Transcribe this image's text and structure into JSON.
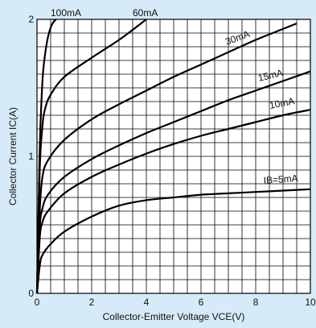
{
  "chart_data": {
    "type": "line",
    "title": "",
    "xlabel": "Collector-Emitter Voltage VCE(V)",
    "ylabel": "Collector Current IC(A)",
    "xlim": [
      0,
      10
    ],
    "ylim": [
      0,
      2
    ],
    "grid": true,
    "x_ticks": [
      "0",
      "2",
      "4",
      "6",
      "8",
      "10"
    ],
    "y_ticks": [
      "0",
      "1",
      "2"
    ],
    "series": [
      {
        "name": "100mA",
        "points": [
          [
            0,
            0
          ],
          [
            0.1,
            1.05
          ],
          [
            0.2,
            1.55
          ],
          [
            0.3,
            1.75
          ],
          [
            0.4,
            1.87
          ],
          [
            0.5,
            1.94
          ],
          [
            0.6,
            1.98
          ],
          [
            0.7,
            2.0
          ]
        ]
      },
      {
        "name": "60mA",
        "points": [
          [
            0,
            0
          ],
          [
            0.1,
            0.9
          ],
          [
            0.2,
            1.22
          ],
          [
            0.3,
            1.35
          ],
          [
            0.5,
            1.45
          ],
          [
            1,
            1.58
          ],
          [
            2,
            1.72
          ],
          [
            3,
            1.85
          ],
          [
            4,
            2.0
          ]
        ]
      },
      {
        "name": "30mA",
        "points": [
          [
            0,
            0
          ],
          [
            0.1,
            0.6
          ],
          [
            0.2,
            0.85
          ],
          [
            0.4,
            0.97
          ],
          [
            1,
            1.12
          ],
          [
            2,
            1.27
          ],
          [
            3,
            1.38
          ],
          [
            4,
            1.48
          ],
          [
            5,
            1.58
          ],
          [
            6,
            1.67
          ],
          [
            7,
            1.76
          ],
          [
            8,
            1.85
          ],
          [
            9,
            1.93
          ],
          [
            9.5,
            1.97
          ]
        ]
      },
      {
        "name": "15mA",
        "points": [
          [
            0,
            0
          ],
          [
            0.1,
            0.48
          ],
          [
            0.2,
            0.62
          ],
          [
            0.4,
            0.72
          ],
          [
            1,
            0.85
          ],
          [
            2,
            0.98
          ],
          [
            3,
            1.08
          ],
          [
            4,
            1.17
          ],
          [
            5,
            1.25
          ],
          [
            6,
            1.33
          ],
          [
            7,
            1.41
          ],
          [
            8,
            1.48
          ],
          [
            9,
            1.55
          ],
          [
            10,
            1.62
          ]
        ]
      },
      {
        "name": "10mA",
        "points": [
          [
            0,
            0
          ],
          [
            0.1,
            0.4
          ],
          [
            0.2,
            0.52
          ],
          [
            0.4,
            0.6
          ],
          [
            1,
            0.73
          ],
          [
            2,
            0.85
          ],
          [
            3,
            0.94
          ],
          [
            4,
            1.02
          ],
          [
            5,
            1.09
          ],
          [
            6,
            1.15
          ],
          [
            7,
            1.2
          ],
          [
            8,
            1.25
          ],
          [
            9,
            1.3
          ],
          [
            10,
            1.34
          ]
        ]
      },
      {
        "name": "IB=5mA",
        "points": [
          [
            0,
            0
          ],
          [
            0.1,
            0.2
          ],
          [
            0.2,
            0.28
          ],
          [
            0.5,
            0.36
          ],
          [
            1,
            0.45
          ],
          [
            2,
            0.56
          ],
          [
            3,
            0.64
          ],
          [
            4,
            0.68
          ],
          [
            5,
            0.7
          ],
          [
            6,
            0.72
          ],
          [
            7,
            0.73
          ],
          [
            8,
            0.74
          ],
          [
            9,
            0.75
          ],
          [
            10,
            0.76
          ]
        ]
      }
    ]
  }
}
